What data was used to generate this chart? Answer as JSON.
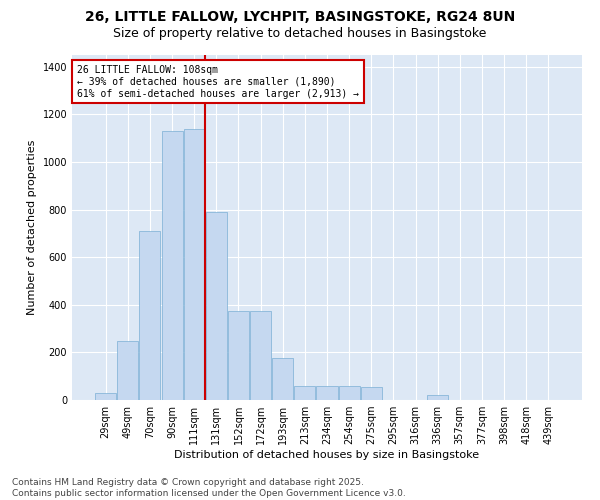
{
  "title": "26, LITTLE FALLOW, LYCHPIT, BASINGSTOKE, RG24 8UN",
  "subtitle": "Size of property relative to detached houses in Basingstoke",
  "xlabel": "Distribution of detached houses by size in Basingstoke",
  "ylabel": "Number of detached properties",
  "bar_color": "#c5d8f0",
  "bar_edge_color": "#7aafd4",
  "background_color": "#dde8f5",
  "grid_color": "#ffffff",
  "categories": [
    "29sqm",
    "49sqm",
    "70sqm",
    "90sqm",
    "111sqm",
    "131sqm",
    "152sqm",
    "172sqm",
    "193sqm",
    "213sqm",
    "234sqm",
    "254sqm",
    "275sqm",
    "295sqm",
    "316sqm",
    "336sqm",
    "357sqm",
    "377sqm",
    "398sqm",
    "418sqm",
    "439sqm"
  ],
  "values": [
    30,
    250,
    710,
    1130,
    1140,
    790,
    375,
    375,
    175,
    60,
    60,
    60,
    55,
    0,
    0,
    20,
    0,
    0,
    0,
    0,
    0
  ],
  "ylim": [
    0,
    1450
  ],
  "yticks": [
    0,
    200,
    400,
    600,
    800,
    1000,
    1200,
    1400
  ],
  "property_label": "26 LITTLE FALLOW: 108sqm",
  "pct_smaller": "39%",
  "pct_smaller_count": "1,890",
  "pct_larger": "61%",
  "pct_larger_count": "2,913",
  "annotation_box_color": "#cc0000",
  "red_line_x": 4.5,
  "footer_line1": "Contains HM Land Registry data © Crown copyright and database right 2025.",
  "footer_line2": "Contains public sector information licensed under the Open Government Licence v3.0.",
  "title_fontsize": 10,
  "subtitle_fontsize": 9,
  "axis_label_fontsize": 8,
  "tick_fontsize": 7,
  "annot_fontsize": 7,
  "footer_fontsize": 6.5,
  "fig_bg_color": "#ffffff"
}
